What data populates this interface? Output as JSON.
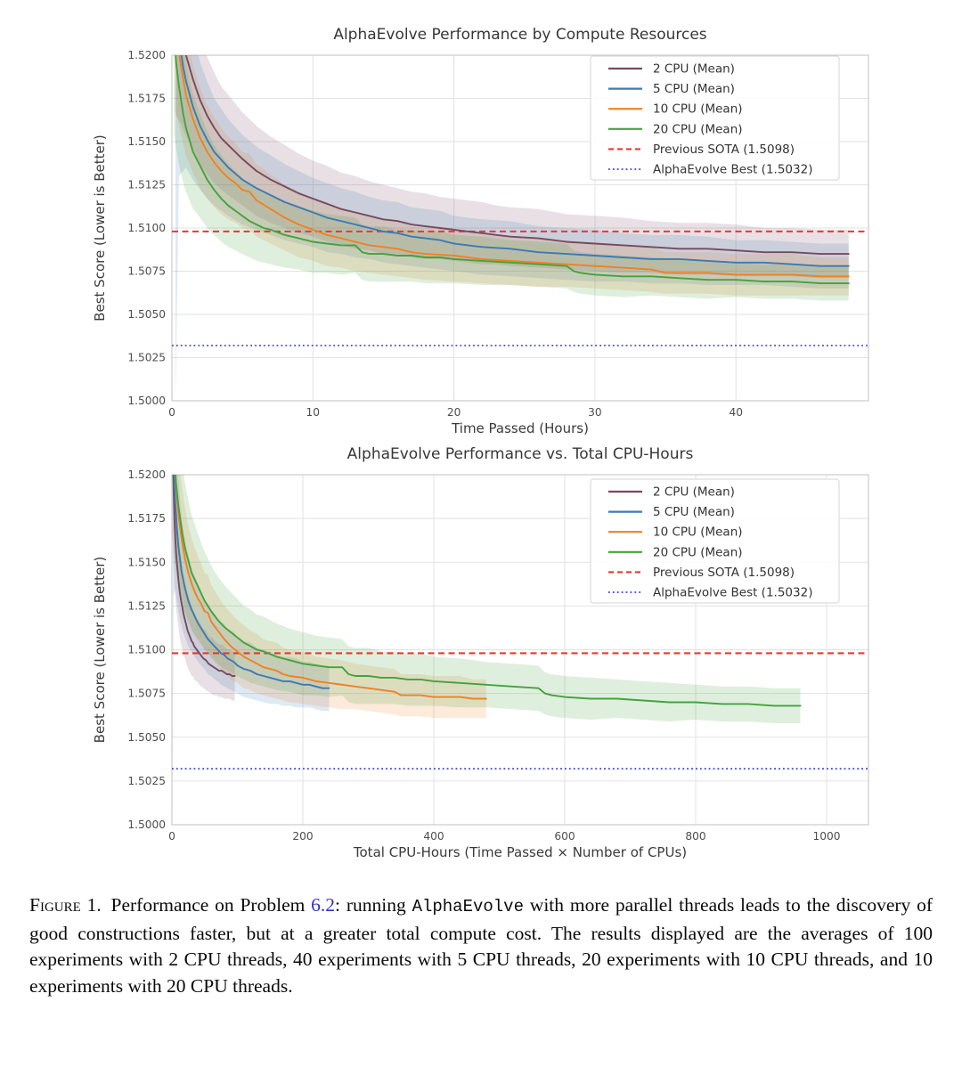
{
  "page": {
    "background": "#ffffff"
  },
  "colors": {
    "grid": "#e2e2e2",
    "spine": "#cccccc",
    "tick_text": "#4d4d4d",
    "label_text": "#3a3a3a",
    "title_text": "#373737",
    "legend_border": "#d5d5d5",
    "caption_link": "#3030d0"
  },
  "series": [
    {
      "name": "cpu2",
      "label": "2 CPU (Mean)",
      "color": "#784a5e",
      "cpus": 2,
      "points": [
        [
          0.3,
          1.5235,
          0.007
        ],
        [
          0.6,
          1.5216,
          0.0055
        ],
        [
          1,
          1.52,
          0.0047
        ],
        [
          1.5,
          1.5186,
          0.004
        ],
        [
          2,
          1.5174,
          0.0037
        ],
        [
          2.5,
          1.5165,
          0.0034
        ],
        [
          3,
          1.5158,
          0.0032
        ],
        [
          3.5,
          1.5152,
          0.003
        ],
        [
          4,
          1.5148,
          0.0029
        ],
        [
          5,
          1.514,
          0.0027
        ],
        [
          6,
          1.5133,
          0.0026
        ],
        [
          7,
          1.5128,
          0.0025
        ],
        [
          8,
          1.5124,
          0.0024
        ],
        [
          9,
          1.512,
          0.0023
        ],
        [
          10,
          1.5117,
          0.0022
        ],
        [
          11,
          1.5114,
          0.0022
        ],
        [
          12,
          1.5111,
          0.0021
        ],
        [
          13,
          1.5109,
          0.0021
        ],
        [
          14,
          1.5107,
          0.002
        ],
        [
          15,
          1.5105,
          0.002
        ],
        [
          16,
          1.5104,
          0.0019
        ],
        [
          17,
          1.5102,
          0.0019
        ],
        [
          18,
          1.5101,
          0.0019
        ],
        [
          19,
          1.51,
          0.0018
        ],
        [
          20,
          1.5099,
          0.0018
        ],
        [
          21,
          1.5098,
          0.0018
        ],
        [
          22,
          1.5097,
          0.0018
        ],
        [
          23,
          1.5096,
          0.0017
        ],
        [
          24,
          1.5095,
          0.0017
        ],
        [
          26,
          1.5094,
          0.0017
        ],
        [
          28,
          1.5092,
          0.0016
        ],
        [
          30,
          1.5091,
          0.0016
        ],
        [
          32,
          1.509,
          0.0016
        ],
        [
          34,
          1.5089,
          0.0015
        ],
        [
          36,
          1.5088,
          0.0015
        ],
        [
          38,
          1.5088,
          0.0015
        ],
        [
          40,
          1.5087,
          0.0015
        ],
        [
          42,
          1.5086,
          0.0014
        ],
        [
          44,
          1.5086,
          0.0014
        ],
        [
          46,
          1.5085,
          0.0014
        ],
        [
          48,
          1.5085,
          0.0014
        ]
      ]
    },
    {
      "name": "cpu5",
      "label": "5 CPU (Mean)",
      "color": "#3d7ab5",
      "cpus": 5,
      "points": [
        [
          0.25,
          1.5238,
          0.024
        ],
        [
          0.5,
          1.521,
          0.008
        ],
        [
          0.8,
          1.5193,
          0.006
        ],
        [
          1,
          1.5185,
          0.005
        ],
        [
          1.5,
          1.517,
          0.0042
        ],
        [
          2,
          1.5159,
          0.0037
        ],
        [
          2.5,
          1.5151,
          0.0034
        ],
        [
          3,
          1.5144,
          0.0031
        ],
        [
          4,
          1.5135,
          0.0028
        ],
        [
          5,
          1.5128,
          0.0026
        ],
        [
          6,
          1.5123,
          0.0024
        ],
        [
          7,
          1.5119,
          0.0023
        ],
        [
          8,
          1.5115,
          0.0022
        ],
        [
          9,
          1.5112,
          0.0021
        ],
        [
          10,
          1.5109,
          0.002
        ],
        [
          11,
          1.5106,
          0.002
        ],
        [
          12,
          1.5104,
          0.0019
        ],
        [
          13,
          1.5102,
          0.0019
        ],
        [
          14,
          1.51,
          0.0018
        ],
        [
          15,
          1.5098,
          0.0018
        ],
        [
          16,
          1.5097,
          0.0018
        ],
        [
          17,
          1.5095,
          0.0017
        ],
        [
          18,
          1.5094,
          0.0017
        ],
        [
          19,
          1.5093,
          0.0017
        ],
        [
          20,
          1.5091,
          0.0016
        ],
        [
          21,
          1.509,
          0.0016
        ],
        [
          22,
          1.5089,
          0.0016
        ],
        [
          24,
          1.5088,
          0.0016
        ],
        [
          26,
          1.5086,
          0.0015
        ],
        [
          28,
          1.5085,
          0.0015
        ],
        [
          30,
          1.5084,
          0.0015
        ],
        [
          32,
          1.5083,
          0.0014
        ],
        [
          34,
          1.5082,
          0.0014
        ],
        [
          36,
          1.5082,
          0.0014
        ],
        [
          38,
          1.5081,
          0.0014
        ],
        [
          40,
          1.508,
          0.0013
        ],
        [
          42,
          1.508,
          0.0013
        ],
        [
          44,
          1.5079,
          0.0013
        ],
        [
          46,
          1.5078,
          0.0013
        ],
        [
          48,
          1.5078,
          0.0013
        ]
      ]
    },
    {
      "name": "cpu10",
      "label": "10 CPU (Mean)",
      "color": "#f08123",
      "cpus": 10,
      "points": [
        [
          0.2,
          1.5228,
          0.006
        ],
        [
          0.4,
          1.5208,
          0.0045
        ],
        [
          0.6,
          1.5196,
          0.004
        ],
        [
          1,
          1.5177,
          0.0035
        ],
        [
          1.5,
          1.5163,
          0.0031
        ],
        [
          2,
          1.5152,
          0.0029
        ],
        [
          2.5,
          1.5144,
          0.0027
        ],
        [
          3,
          1.5138,
          0.0026
        ],
        [
          3.5,
          1.5133,
          0.0025
        ],
        [
          4,
          1.5129,
          0.0024
        ],
        [
          4.5,
          1.5126,
          0.0023
        ],
        [
          5,
          1.5122,
          0.0022
        ],
        [
          5.5,
          1.5121,
          0.0022
        ],
        [
          6,
          1.5116,
          0.0021
        ],
        [
          7,
          1.5111,
          0.002
        ],
        [
          8,
          1.5106,
          0.0019
        ],
        [
          9,
          1.5102,
          0.0019
        ],
        [
          10,
          1.5099,
          0.0018
        ],
        [
          11,
          1.5096,
          0.0018
        ],
        [
          12,
          1.5094,
          0.0017
        ],
        [
          13,
          1.5092,
          0.0017
        ],
        [
          14,
          1.509,
          0.0016
        ],
        [
          15,
          1.5089,
          0.0016
        ],
        [
          16,
          1.5088,
          0.0016
        ],
        [
          17,
          1.5086,
          0.0015
        ],
        [
          18,
          1.5085,
          0.0015
        ],
        [
          20,
          1.5084,
          0.0015
        ],
        [
          22,
          1.5082,
          0.0014
        ],
        [
          24,
          1.5081,
          0.0014
        ],
        [
          26,
          1.508,
          0.0014
        ],
        [
          28,
          1.5079,
          0.0013
        ],
        [
          30,
          1.5078,
          0.0013
        ],
        [
          32,
          1.5077,
          0.0013
        ],
        [
          34,
          1.5076,
          0.0013
        ],
        [
          35,
          1.5074,
          0.0012
        ],
        [
          36,
          1.5074,
          0.0012
        ],
        [
          38,
          1.5074,
          0.0012
        ],
        [
          40,
          1.5073,
          0.0012
        ],
        [
          42,
          1.5073,
          0.0012
        ],
        [
          44,
          1.5073,
          0.0012
        ],
        [
          46,
          1.5072,
          0.0011
        ],
        [
          48,
          1.5072,
          0.0011
        ]
      ]
    },
    {
      "name": "cpu20",
      "label": "20 CPU (Mean)",
      "color": "#44a33c",
      "cpus": 20,
      "points": [
        [
          0.15,
          1.5215,
          0.006
        ],
        [
          0.3,
          1.5196,
          0.005
        ],
        [
          0.5,
          1.5182,
          0.0045
        ],
        [
          0.8,
          1.5166,
          0.004
        ],
        [
          1,
          1.5158,
          0.0037
        ],
        [
          1.5,
          1.5144,
          0.0033
        ],
        [
          2,
          1.5136,
          0.003
        ],
        [
          2.5,
          1.5128,
          0.0028
        ],
        [
          3,
          1.5122,
          0.0026
        ],
        [
          3.5,
          1.5117,
          0.0025
        ],
        [
          4,
          1.5113,
          0.0024
        ],
        [
          4.5,
          1.511,
          0.0023
        ],
        [
          5,
          1.5107,
          0.0022
        ],
        [
          5.5,
          1.5104,
          0.0021
        ],
        [
          6,
          1.5102,
          0.0021
        ],
        [
          6.5,
          1.51,
          0.002
        ],
        [
          7,
          1.5099,
          0.002
        ],
        [
          8,
          1.5096,
          0.0019
        ],
        [
          9,
          1.5094,
          0.0018
        ],
        [
          10,
          1.5092,
          0.0018
        ],
        [
          11,
          1.5091,
          0.0017
        ],
        [
          12,
          1.509,
          0.0017
        ],
        [
          13,
          1.509,
          0.0016
        ],
        [
          13.5,
          1.5086,
          0.0016
        ],
        [
          14,
          1.5085,
          0.0016
        ],
        [
          15,
          1.5085,
          0.0016
        ],
        [
          16,
          1.5084,
          0.0015
        ],
        [
          17,
          1.5084,
          0.0015
        ],
        [
          18,
          1.5083,
          0.0015
        ],
        [
          19,
          1.5083,
          0.0015
        ],
        [
          20,
          1.5082,
          0.0014
        ],
        [
          22,
          1.5081,
          0.0014
        ],
        [
          24,
          1.508,
          0.0013
        ],
        [
          26,
          1.5079,
          0.0013
        ],
        [
          28,
          1.5078,
          0.0013
        ],
        [
          28.5,
          1.5075,
          0.0012
        ],
        [
          29,
          1.5074,
          0.0012
        ],
        [
          30,
          1.5073,
          0.0012
        ],
        [
          32,
          1.5072,
          0.0012
        ],
        [
          34,
          1.5072,
          0.0011
        ],
        [
          36,
          1.5071,
          0.0011
        ],
        [
          38,
          1.507,
          0.0011
        ],
        [
          40,
          1.507,
          0.001
        ],
        [
          42,
          1.5069,
          0.001
        ],
        [
          44,
          1.5069,
          0.001
        ],
        [
          46,
          1.5068,
          0.001
        ],
        [
          48,
          1.5068,
          0.001
        ]
      ]
    }
  ],
  "hlines": [
    {
      "label": "Previous SOTA (1.5098)",
      "value": 1.5098,
      "color": "#e8382e",
      "dash": "dashed"
    },
    {
      "label": "AlphaEvolve Best (1.5032)",
      "value": 1.5032,
      "color": "#3b3bf0",
      "dash": "dotted"
    }
  ],
  "chart_data": [
    {
      "type": "line",
      "id": "time",
      "title": "AlphaEvolve Performance by Compute Resources",
      "xlabel": "Time Passed (Hours)",
      "ylabel": "Best Score (Lower is Better)",
      "x_mode": "hours",
      "xlim": [
        0,
        49.4
      ],
      "ylim": [
        1.5,
        1.52
      ],
      "xtick_values": [
        0,
        10,
        20,
        30,
        40
      ],
      "xtick_labels": [
        "0",
        "10",
        "20",
        "30",
        "40"
      ],
      "ytick_values": [
        1.5,
        1.5025,
        1.505,
        1.5075,
        1.51,
        1.5125,
        1.515,
        1.5175,
        1.52
      ],
      "ytick_labels": [
        "1.5000",
        "1.5025",
        "1.5050",
        "1.5075",
        "1.5100",
        "1.5125",
        "1.5150",
        "1.5175",
        "1.5200"
      ],
      "grid": true,
      "legend_position": "upper right",
      "series_labels": [
        "2 CPU (Mean)",
        "5 CPU (Mean)",
        "10 CPU (Mean)",
        "20 CPU (Mean)",
        "Previous SOTA (1.5098)",
        "AlphaEvolve Best (1.5032)"
      ]
    },
    {
      "type": "line",
      "id": "cpu_hours",
      "title": "AlphaEvolve Performance vs. Total CPU-Hours",
      "xlabel": "Total CPU-Hours (Time Passed × Number of CPUs)",
      "ylabel": "Best Score (Lower is Better)",
      "x_mode": "hours_times_cpus",
      "xlim": [
        0,
        1064
      ],
      "ylim": [
        1.5,
        1.52
      ],
      "xtick_values": [
        0,
        200,
        400,
        600,
        800,
        1000
      ],
      "xtick_labels": [
        "0",
        "200",
        "400",
        "600",
        "800",
        "1000"
      ],
      "ytick_values": [
        1.5,
        1.5025,
        1.505,
        1.5075,
        1.51,
        1.5125,
        1.515,
        1.5175,
        1.52
      ],
      "ytick_labels": [
        "1.5000",
        "1.5025",
        "1.5050",
        "1.5075",
        "1.5100",
        "1.5125",
        "1.5150",
        "1.5175",
        "1.5200"
      ],
      "grid": true,
      "legend_position": "upper right",
      "series_labels": [
        "2 CPU (Mean)",
        "5 CPU (Mean)",
        "10 CPU (Mean)",
        "20 CPU (Mean)",
        "Previous SOTA (1.5098)",
        "AlphaEvolve Best (1.5032)"
      ]
    }
  ],
  "caption": {
    "parts": [
      {
        "text": "Figure",
        "style": "smallcaps"
      },
      {
        "text": " 1. Performance on Problem ",
        "style": "plain"
      },
      {
        "text": "6.2",
        "style": "link"
      },
      {
        "text": ": running ",
        "style": "plain"
      },
      {
        "text": "AlphaEvolve",
        "style": "mono"
      },
      {
        "text": " with more parallel threads leads to the discovery of good constructions faster, but at a greater total compute cost. The results displayed are the averages of 100 experiments with 2 CPU threads, 40 experiments with 5 CPU threads, 20 experiments with 10 CPU threads, and 10 experiments with 20 CPU threads.",
        "style": "plain"
      }
    ]
  }
}
